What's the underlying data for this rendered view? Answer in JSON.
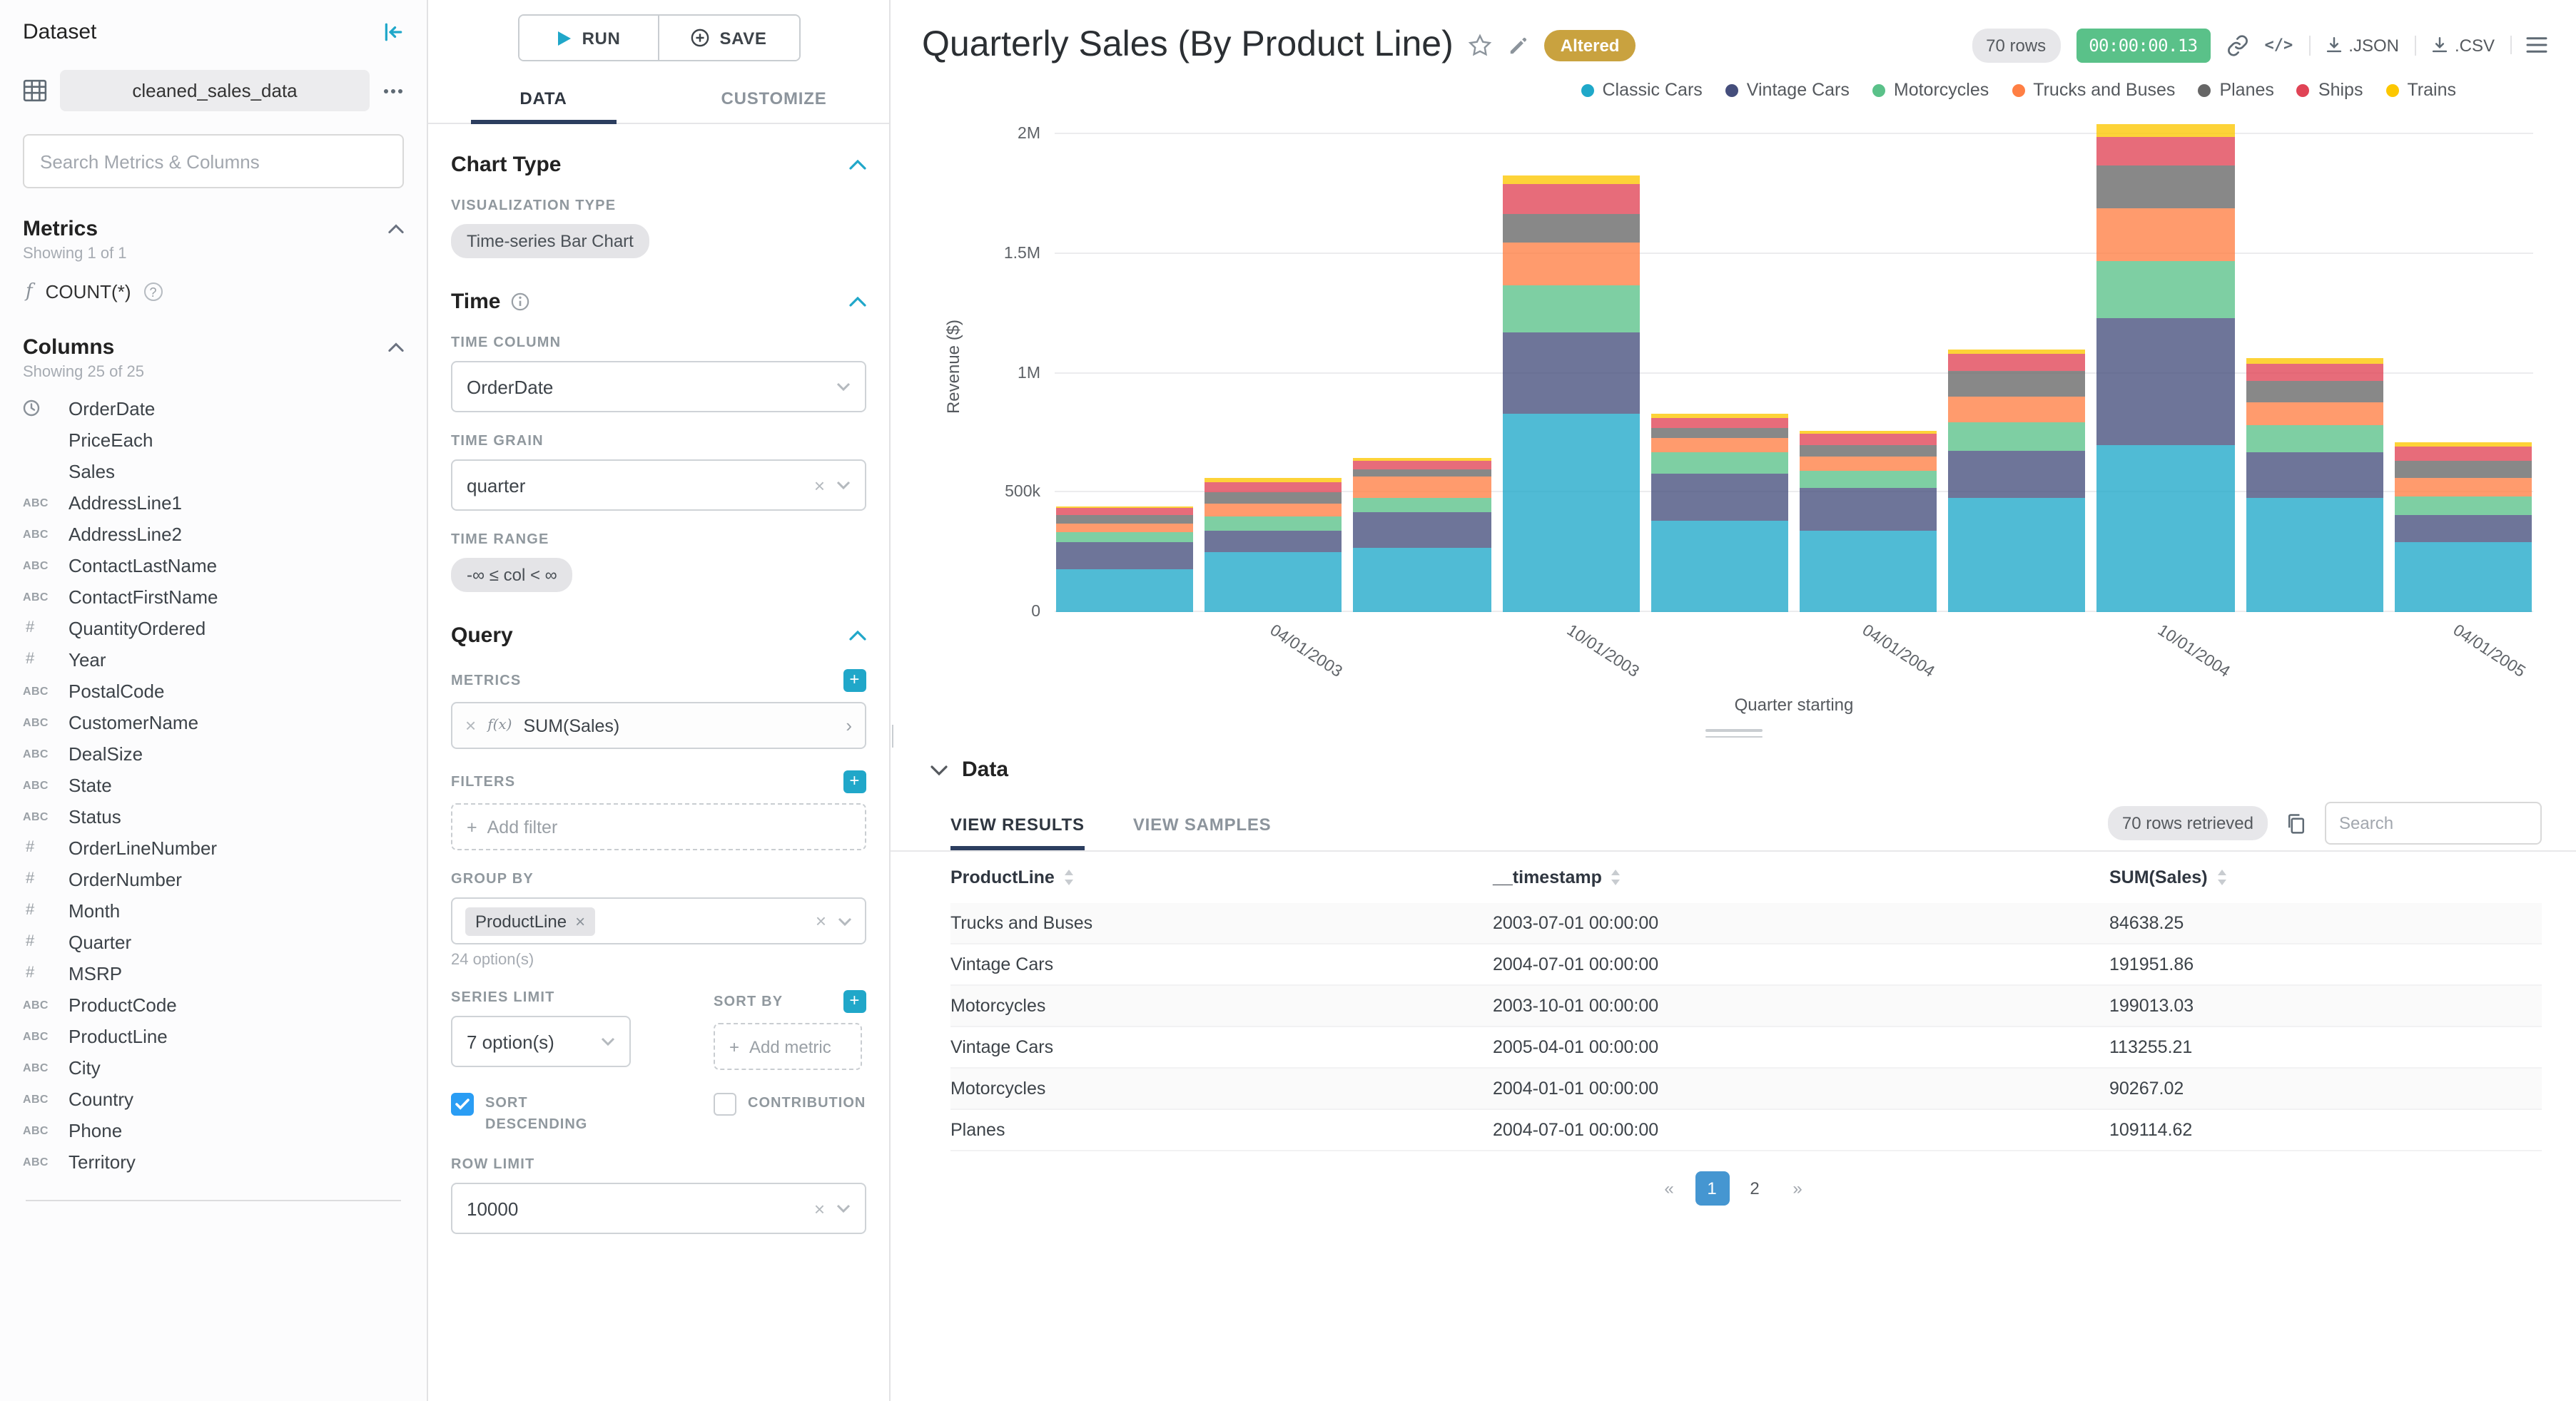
{
  "dataset_panel": {
    "title": "Dataset",
    "dataset_name": "cleaned_sales_data",
    "search_placeholder": "Search Metrics & Columns",
    "metrics_header": "Metrics",
    "metrics_showing": "Showing 1 of 1",
    "metrics": [
      {
        "label": "COUNT(*)"
      }
    ],
    "columns_header": "Columns",
    "columns_showing": "Showing 25 of 25",
    "columns": [
      {
        "type": "time",
        "label": "OrderDate"
      },
      {
        "type": "",
        "label": "PriceEach"
      },
      {
        "type": "",
        "label": "Sales"
      },
      {
        "type": "str",
        "label": "AddressLine1"
      },
      {
        "type": "str",
        "label": "AddressLine2"
      },
      {
        "type": "str",
        "label": "ContactLastName"
      },
      {
        "type": "str",
        "label": "ContactFirstName"
      },
      {
        "type": "num",
        "label": "QuantityOrdered"
      },
      {
        "type": "num",
        "label": "Year"
      },
      {
        "type": "str",
        "label": "PostalCode"
      },
      {
        "type": "str",
        "label": "CustomerName"
      },
      {
        "type": "str",
        "label": "DealSize"
      },
      {
        "type": "str",
        "label": "State"
      },
      {
        "type": "str",
        "label": "Status"
      },
      {
        "type": "num",
        "label": "OrderLineNumber"
      },
      {
        "type": "num",
        "label": "OrderNumber"
      },
      {
        "type": "num",
        "label": "Month"
      },
      {
        "type": "num",
        "label": "Quarter"
      },
      {
        "type": "num",
        "label": "MSRP"
      },
      {
        "type": "str",
        "label": "ProductCode"
      },
      {
        "type": "str",
        "label": "ProductLine"
      },
      {
        "type": "str",
        "label": "City"
      },
      {
        "type": "str",
        "label": "Country"
      },
      {
        "type": "str",
        "label": "Phone"
      },
      {
        "type": "str",
        "label": "Territory"
      }
    ]
  },
  "control_panel": {
    "run_label": "RUN",
    "save_label": "SAVE",
    "tabs": [
      "DATA",
      "CUSTOMIZE"
    ],
    "chart_type": {
      "title": "Chart Type",
      "viz_type_label": "VISUALIZATION TYPE",
      "viz_type_value": "Time-series Bar Chart"
    },
    "time": {
      "title": "Time",
      "time_column_label": "TIME COLUMN",
      "time_column_value": "OrderDate",
      "time_grain_label": "TIME GRAIN",
      "time_grain_value": "quarter",
      "time_range_label": "TIME RANGE",
      "time_range_value": "-∞ ≤ col < ∞"
    },
    "query": {
      "title": "Query",
      "metrics_label": "METRICS",
      "metric_prefix": "f(x)",
      "metric_value": "SUM(Sales)",
      "filters_label": "FILTERS",
      "add_filter_label": "Add filter",
      "group_by_label": "GROUP BY",
      "group_by_value": "ProductLine",
      "group_by_options": "24 option(s)",
      "series_limit_label": "SERIES LIMIT",
      "series_limit_value": "7 option(s)",
      "sort_by_label": "SORT BY",
      "add_metric_label": "Add metric",
      "sort_descending_label": "SORT DESCENDING",
      "contribution_label": "CONTRIBUTION",
      "row_limit_label": "ROW LIMIT",
      "row_limit_value": "10000"
    }
  },
  "header": {
    "title": "Quarterly Sales (By Product Line)",
    "altered_badge": "Altered",
    "rows_badge": "70 rows",
    "timer_badge": "00:00:00.13",
    "json_label": ".JSON",
    "csv_label": ".CSV"
  },
  "chart_data": {
    "type": "bar",
    "stacked": true,
    "title": "Quarterly Sales (By Product Line)",
    "xlabel": "Quarter starting",
    "ylabel": "Revenue ($)",
    "x": [
      "01/01/2003",
      "04/01/2003",
      "07/01/2003",
      "10/01/2003",
      "01/01/2004",
      "04/01/2004",
      "07/01/2004",
      "10/01/2004",
      "01/01/2005",
      "04/01/2005"
    ],
    "x_tick_labels": [
      "",
      "04/01/2003",
      "",
      "10/01/2003",
      "",
      "04/01/2004",
      "",
      "10/01/2004",
      "",
      "04/01/2005"
    ],
    "y_ticks": [
      0,
      500000,
      1000000,
      1500000,
      2000000
    ],
    "y_tick_labels": [
      "0",
      "500k",
      "1M",
      "1.5M",
      "2M"
    ],
    "ylim": [
      0,
      2060000
    ],
    "legend_position": "top-right",
    "grid": true,
    "series": [
      {
        "name": "Classic Cars",
        "color": "#1FA8C9",
        "values": [
          180000,
          250000,
          270000,
          830000,
          380000,
          340000,
          480000,
          700000,
          480000,
          290000
        ]
      },
      {
        "name": "Vintage Cars",
        "color": "#454E7C",
        "values": [
          110000,
          90000,
          150000,
          340000,
          200000,
          180000,
          191952,
          530000,
          190000,
          113255
        ]
      },
      {
        "name": "Motorcycles",
        "color": "#5AC189",
        "values": [
          45000,
          60000,
          60000,
          199013,
          90267,
          70000,
          120000,
          240000,
          110000,
          80000
        ]
      },
      {
        "name": "Trucks and Buses",
        "color": "#FF7F44",
        "values": [
          35000,
          55000,
          84638,
          180000,
          60000,
          60000,
          110000,
          220000,
          100000,
          80000
        ]
      },
      {
        "name": "Planes",
        "color": "#666666",
        "values": [
          35000,
          45000,
          30000,
          120000,
          40000,
          50000,
          109115,
          180000,
          90000,
          70000
        ]
      },
      {
        "name": "Ships",
        "color": "#E04355",
        "values": [
          30000,
          45000,
          40000,
          120000,
          45000,
          45000,
          70000,
          120000,
          70000,
          60000
        ]
      },
      {
        "name": "Trains",
        "color": "#FCC700",
        "values": [
          10000,
          15000,
          8000,
          40000,
          15000,
          15000,
          20000,
          50000,
          25000,
          20000
        ]
      }
    ]
  },
  "data_panel": {
    "title": "Data",
    "tabs": [
      "VIEW RESULTS",
      "VIEW SAMPLES"
    ],
    "rows_retrieved": "70 rows retrieved",
    "search_placeholder": "Search",
    "table": {
      "columns": [
        "ProductLine",
        "__timestamp",
        "SUM(Sales)"
      ],
      "rows": [
        [
          "Trucks and Buses",
          "2003-07-01 00:00:00",
          "84638.25"
        ],
        [
          "Vintage Cars",
          "2004-07-01 00:00:00",
          "191951.86"
        ],
        [
          "Motorcycles",
          "2003-10-01 00:00:00",
          "199013.03"
        ],
        [
          "Vintage Cars",
          "2005-04-01 00:00:00",
          "113255.21"
        ],
        [
          "Motorcycles",
          "2004-01-01 00:00:00",
          "90267.02"
        ],
        [
          "Planes",
          "2004-07-01 00:00:00",
          "109114.62"
        ]
      ]
    },
    "pagination": {
      "first": "«",
      "pages": [
        "1",
        "2"
      ],
      "active_page": "1",
      "last": "»"
    }
  }
}
